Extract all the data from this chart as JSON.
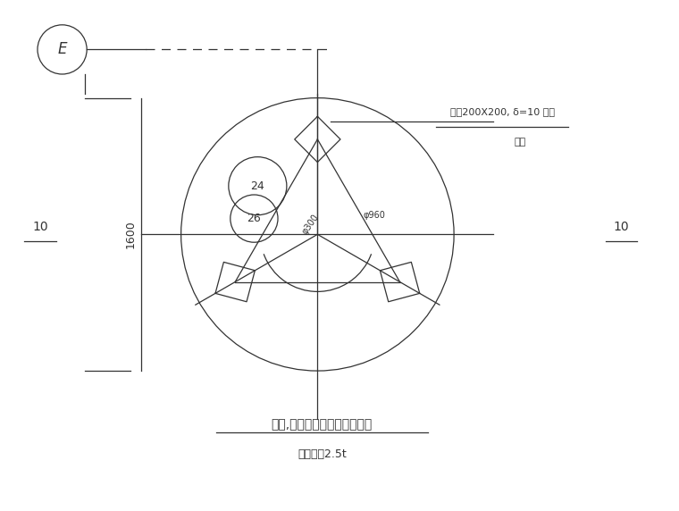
{
  "bg_color": "#ffffff",
  "line_color": "#333333",
  "fig_width": 7.6,
  "fig_height": 5.72,
  "dpi": 100,
  "title_text": "明床,混床碱计量箱基础平面图",
  "subtitle_text": "运行荷重2.5t",
  "annotation_text1": "预埋200X200, δ=10 钢板",
  "annotation_text2": "三块",
  "label_1600": "1600",
  "label_10_left": "10",
  "label_10_right": "10",
  "e_label": "E",
  "dim_300": "φ300",
  "dim_960": "φ960"
}
